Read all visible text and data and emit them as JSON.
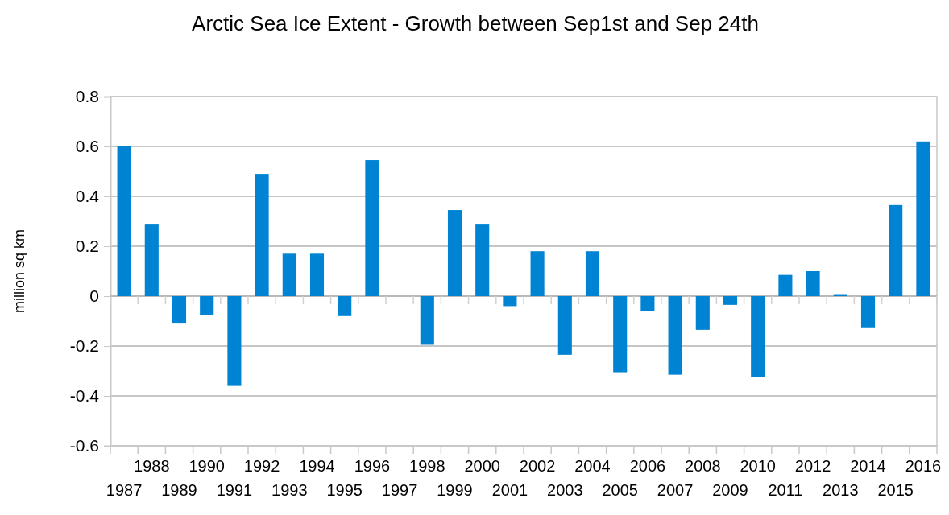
{
  "chart_data": {
    "type": "bar",
    "title": "Arctic Sea Ice Extent - Growth between Sep1st and Sep 24th",
    "ylabel": "million sq km",
    "categories": [
      "1987",
      "1988",
      "1989",
      "1990",
      "1991",
      "1992",
      "1993",
      "1994",
      "1995",
      "1996",
      "1997",
      "1998",
      "1999",
      "2000",
      "2001",
      "2002",
      "2003",
      "2004",
      "2005",
      "2006",
      "2007",
      "2008",
      "2009",
      "2010",
      "2011",
      "2012",
      "2013",
      "2014",
      "2015",
      "2016"
    ],
    "values": [
      0.6,
      0.29,
      -0.11,
      -0.075,
      -0.36,
      0.49,
      0.17,
      0.17,
      -0.08,
      0.545,
      0,
      -0.195,
      0.345,
      0.29,
      -0.04,
      0.18,
      -0.235,
      0.18,
      -0.305,
      -0.06,
      -0.315,
      -0.135,
      -0.035,
      -0.325,
      0.085,
      0.1,
      0.008,
      -0.125,
      0.365,
      0.62
    ],
    "color": "#0083d3",
    "ylim": [
      -0.6,
      0.8
    ],
    "yticks": [
      -0.6,
      -0.4,
      -0.2,
      0,
      0.2,
      0.4,
      0.6,
      0.8
    ],
    "grid": "y"
  }
}
